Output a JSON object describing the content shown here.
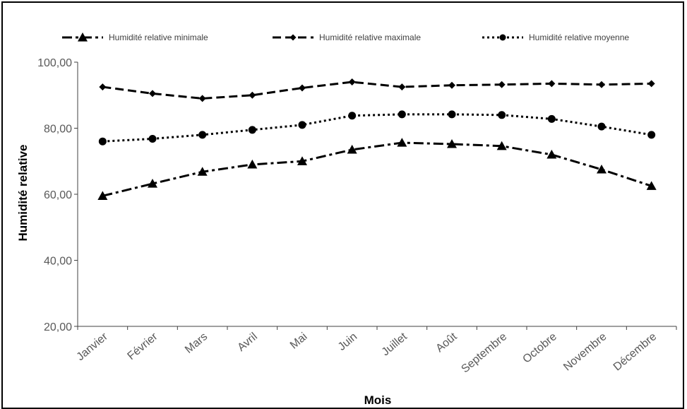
{
  "chart_data": {
    "type": "line",
    "title": "",
    "xlabel": "Mois",
    "ylabel": "Humidité relative",
    "ylim": [
      20,
      100
    ],
    "yticks": [
      "20,00",
      "40,00",
      "60,00",
      "80,00",
      "100,00"
    ],
    "categories": [
      "Janvier",
      "Février",
      "Mars",
      "Avril",
      "Mai",
      "Juin",
      "Juillet",
      "Août",
      "Septembre",
      "Octobre",
      "Novembre",
      "Décembre"
    ],
    "legend_position": "top",
    "grid": false,
    "series": [
      {
        "name": "Humidité relative minimale",
        "marker": "triangle",
        "dash": "dash-dot",
        "color": "#000000",
        "values": [
          59.5,
          63.2,
          66.8,
          69.0,
          70.0,
          73.5,
          75.6,
          75.2,
          74.6,
          72.0,
          67.5,
          62.5
        ]
      },
      {
        "name": "Humidité relative maximale",
        "marker": "diamond",
        "dash": "dash",
        "color": "#000000",
        "values": [
          92.5,
          90.5,
          89.0,
          90.0,
          92.2,
          94.0,
          92.5,
          93.0,
          93.2,
          93.5,
          93.2,
          93.5
        ]
      },
      {
        "name": "Humidité relative moyenne",
        "marker": "circle",
        "dash": "dot",
        "color": "#000000",
        "values": [
          76.0,
          76.8,
          78.0,
          79.5,
          81.0,
          83.8,
          84.2,
          84.2,
          84.0,
          82.8,
          80.5,
          78.0
        ]
      }
    ]
  }
}
